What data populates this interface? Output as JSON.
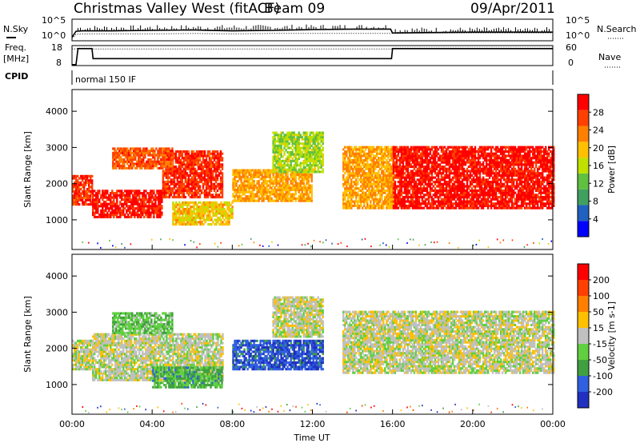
{
  "header": {
    "station": "Christmas Valley West (fitACF)",
    "beam": "Beam 09",
    "date": "09/Apr/2011"
  },
  "side_labels": {
    "nsky": "N.Sky",
    "freq_line1": "Freq.",
    "freq_line2": "[MHz]",
    "cpid": "CPID",
    "nsearch": "N.Search",
    "nave": "Nave"
  },
  "cpid_text": "normal 150 IF",
  "noise_axis": {
    "left_top": "10^5",
    "left_bottom": "10^0",
    "right_top": "10^5",
    "right_bottom": "10^0"
  },
  "freq_axis": {
    "left_top": "18",
    "left_bottom": "8",
    "right_top": "60",
    "right_bottom": "0"
  },
  "colors": {
    "power": [
      "#0000ff",
      "#2060c0",
      "#40a060",
      "#60c040",
      "#c0e000",
      "#ffc000",
      "#ff8000",
      "#ff4000",
      "#ff0000"
    ],
    "velocity": [
      "#2030c0",
      "#3060e0",
      "#40a040",
      "#60d040",
      "#c0c0c0",
      "#ffc000",
      "#ff8000",
      "#ff4000",
      "#ff0000"
    ]
  },
  "chart_data": [
    {
      "type": "line",
      "panel": "noise",
      "x": [
        0,
        0.2,
        0.5,
        1,
        2,
        4,
        6,
        8,
        10,
        12,
        14,
        15.9,
        16,
        18,
        20,
        22,
        24
      ],
      "series": [
        {
          "name": "N.Sky",
          "values": [
            0.8,
            2.2,
            2.3,
            2.3,
            2.3,
            2.4,
            2.5,
            2.3,
            2.4,
            2.6,
            2.7,
            2.7,
            1.8,
            1.9,
            2.0,
            2.0,
            2.0
          ]
        },
        {
          "name": "N.Search",
          "values": [
            0.5,
            1.5,
            1.6,
            1.6,
            1.6,
            1.6,
            1.7,
            1.6,
            1.7,
            1.7,
            1.7,
            1.7,
            1.8,
            1.8,
            1.8,
            1.8,
            1.8
          ]
        }
      ],
      "xlim": [
        0,
        24
      ],
      "ylim": [
        0,
        5
      ],
      "yscale": "log",
      "left_axis": "N.Sky",
      "right_axis": "N.Search"
    },
    {
      "type": "line",
      "panel": "frequency",
      "x": [
        0,
        0.2,
        0.3,
        1,
        1.05,
        15.95,
        16,
        24
      ],
      "series": [
        {
          "name": "Freq.",
          "values": [
            8.5,
            8.5,
            16.5,
            16.5,
            11.5,
            11.5,
            16.5,
            16.5
          ]
        },
        {
          "name": "Nave",
          "values": [
            50,
            50,
            52,
            52,
            50,
            50,
            52,
            52
          ]
        }
      ],
      "xlim": [
        0,
        24
      ],
      "ylim": [
        8,
        18
      ],
      "right_ylim": [
        0,
        60
      ]
    },
    {
      "type": "heatmap",
      "panel": "power",
      "xlabel": "",
      "ylabel": "Slant Range [km]",
      "xlim": [
        0,
        24
      ],
      "ylim": [
        180,
        4600
      ],
      "yticks": [
        1000,
        2000,
        3000,
        4000
      ],
      "colorbar": {
        "label": "Power [dB]",
        "ticks": [
          "28",
          "24",
          "20",
          "16",
          "12",
          "8",
          "4"
        ],
        "range": [
          0,
          30
        ]
      },
      "features": [
        {
          "t0": 0,
          "t1": 1,
          "r0": 1400,
          "r1": 2200,
          "v": 26
        },
        {
          "t0": 1,
          "t1": 4.5,
          "r0": 1050,
          "r1": 1800,
          "v": 28
        },
        {
          "t0": 4.5,
          "t1": 7.5,
          "r0": 1600,
          "r1": 2900,
          "v": 26
        },
        {
          "t0": 2,
          "t1": 5,
          "r0": 2400,
          "r1": 3000,
          "v": 24
        },
        {
          "t0": 5,
          "t1": 8,
          "r0": 850,
          "r1": 1500,
          "v": 18
        },
        {
          "t0": 8,
          "t1": 12,
          "r0": 1500,
          "r1": 2400,
          "v": 20
        },
        {
          "t0": 10,
          "t1": 12.5,
          "r0": 2300,
          "r1": 3400,
          "v": 14
        },
        {
          "t0": 13.5,
          "t1": 16,
          "r0": 1300,
          "r1": 3000,
          "v": 20
        },
        {
          "t0": 16,
          "t1": 24,
          "r0": 1300,
          "r1": 3000,
          "v": 28
        }
      ]
    },
    {
      "type": "heatmap",
      "panel": "velocity",
      "xlabel": "Time UT",
      "ylabel": "Slant Range [km]",
      "xlim": [
        0,
        24
      ],
      "ylim": [
        180,
        4600
      ],
      "xticks": [
        "00:00",
        "04:00",
        "08:00",
        "12:00",
        "16:00",
        "20:00",
        "00:00"
      ],
      "yticks": [
        1000,
        2000,
        3000,
        4000
      ],
      "colorbar": {
        "label": "Velocity [m s-1]",
        "ticks": [
          "200",
          "100",
          "50",
          "15",
          "-15",
          "-50",
          "-100",
          "-200"
        ],
        "range": [
          -250,
          250
        ]
      },
      "features": [
        {
          "t0": 0,
          "t1": 1,
          "r0": 1400,
          "r1": 2200,
          "v": 0
        },
        {
          "t0": 1,
          "t1": 7.5,
          "r0": 1100,
          "r1": 2400,
          "v": 0
        },
        {
          "t0": 2,
          "t1": 5,
          "r0": 2400,
          "r1": 3000,
          "v": -60
        },
        {
          "t0": 4,
          "t1": 7.5,
          "r0": 900,
          "r1": 1500,
          "v": -100
        },
        {
          "t0": 8,
          "t1": 12.5,
          "r0": 1400,
          "r1": 2200,
          "v": -180
        },
        {
          "t0": 10,
          "t1": 12.5,
          "r0": 2300,
          "r1": 3400,
          "v": 0
        },
        {
          "t0": 13.5,
          "t1": 16,
          "r0": 1300,
          "r1": 3000,
          "v": 0
        },
        {
          "t0": 16,
          "t1": 24,
          "r0": 1300,
          "r1": 3000,
          "v": 0
        }
      ]
    }
  ]
}
